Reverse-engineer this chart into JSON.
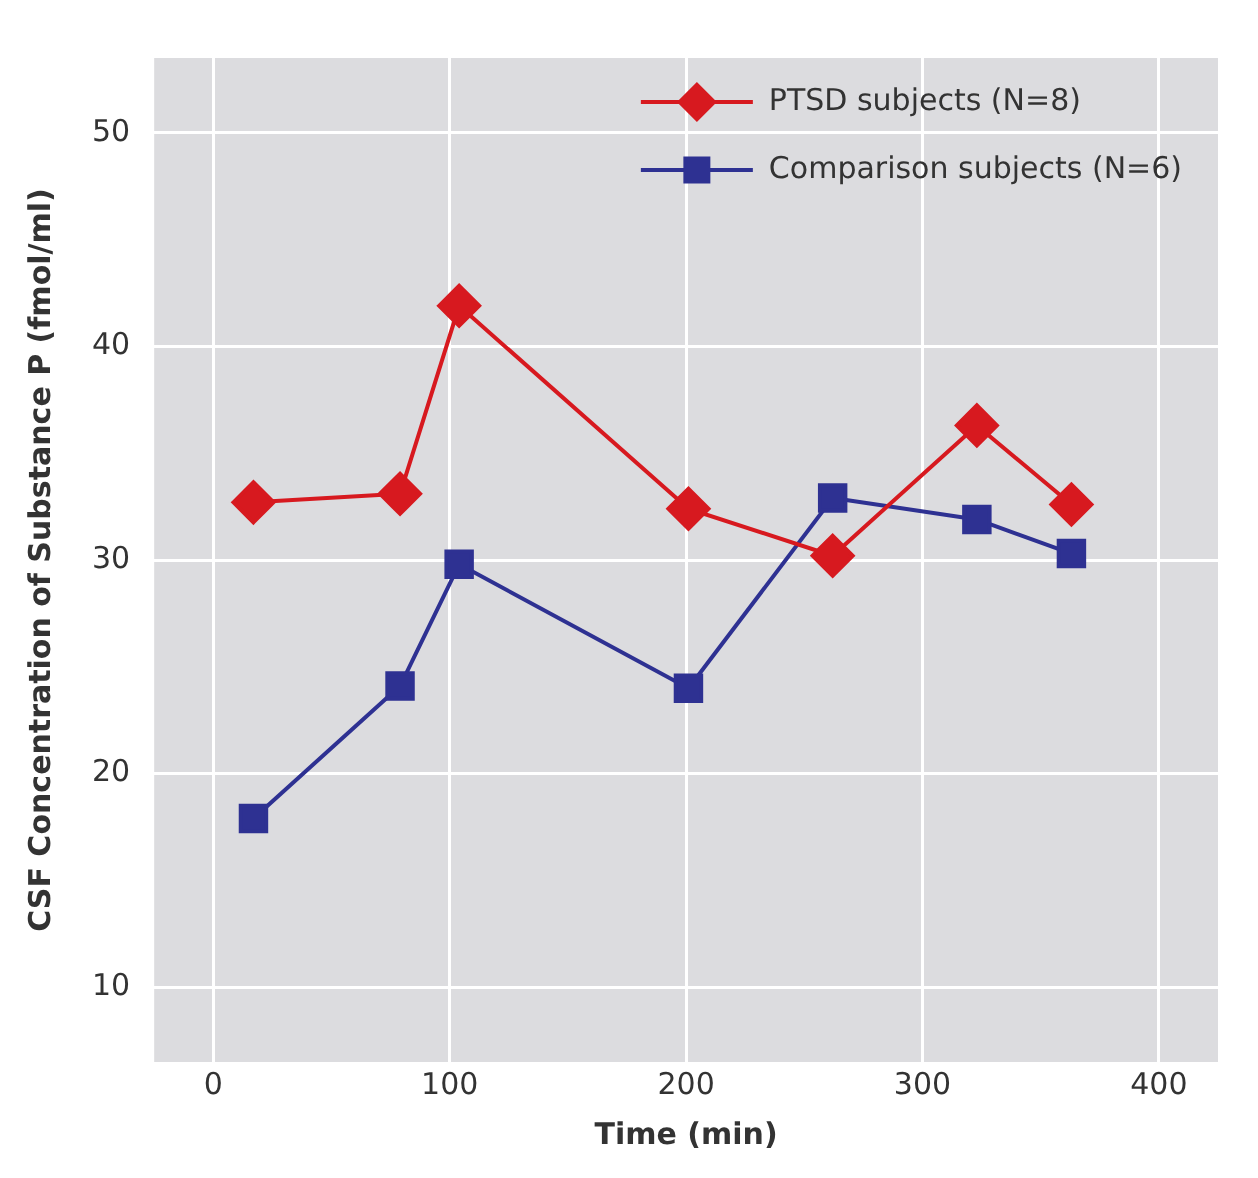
{
  "chart_data": {
    "type": "line",
    "xlabel": "Time (min)",
    "ylabel": "CSF Concentration of Substance P (fmol/ml)",
    "xlim": [
      -25,
      425
    ],
    "xticks": [
      0,
      100,
      200,
      300,
      400
    ],
    "ylim": [
      6.5,
      53.5
    ],
    "yticks": [
      10,
      20,
      30,
      40,
      50
    ],
    "grid": true,
    "legend": "top right",
    "line_style": "solid",
    "series": [
      {
        "name": "PTSD subjects (N=8)",
        "color": "#d7191f",
        "marker": "diamond",
        "x": [
          17,
          79,
          104,
          201,
          262,
          323,
          363
        ],
        "values": [
          32.7,
          33.1,
          41.9,
          32.4,
          30.2,
          36.3,
          32.6
        ]
      },
      {
        "name": "Comparison subjects (N=6)",
        "color": "#2e3192",
        "marker": "square",
        "x": [
          17,
          79,
          104,
          201,
          262,
          323,
          363
        ],
        "values": [
          17.9,
          24.1,
          29.8,
          24.0,
          32.9,
          31.9,
          30.3
        ]
      }
    ]
  }
}
